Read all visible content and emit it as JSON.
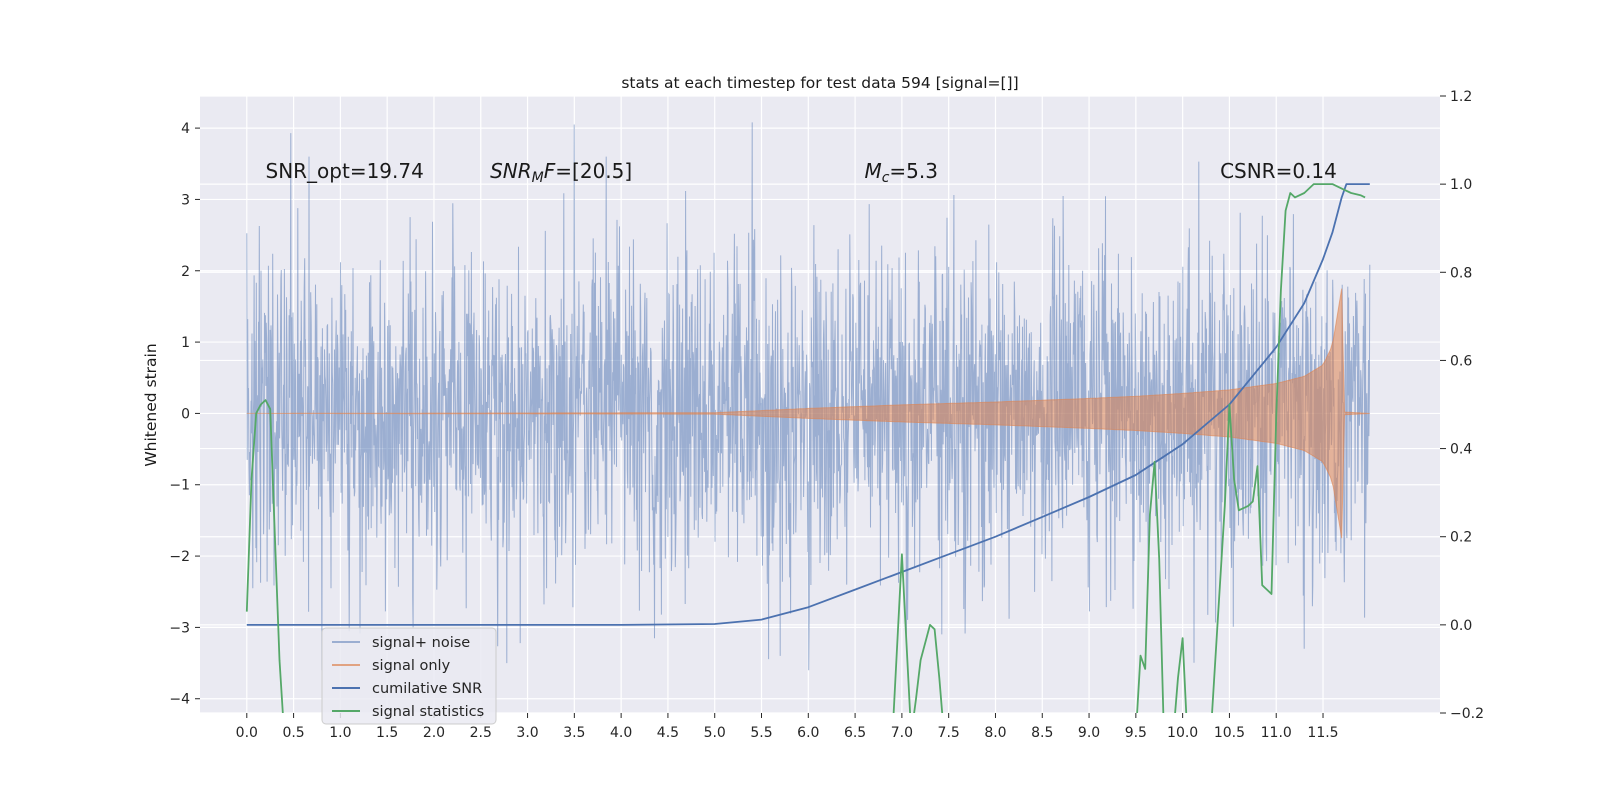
{
  "chart_data": {
    "type": "line",
    "title": "stats at each timestep for test data 594 [signal=[]]",
    "ylabel": "Whitened strain",
    "xlabel": "",
    "xlim": [
      -0.5,
      12.75
    ],
    "ylim": [
      -4.2,
      4.45
    ],
    "y2lim": [
      -0.2,
      1.2
    ],
    "grid": true,
    "legend_position": "lower-left",
    "x_ticks": [
      "0.0",
      "0.5",
      "1.0",
      "1.5",
      "2.0",
      "2.5",
      "3.0",
      "3.5",
      "4.0",
      "4.5",
      "5.0",
      "5.5",
      "6.0",
      "6.5",
      "7.0",
      "7.5",
      "8.0",
      "8.5",
      "9.0",
      "9.5",
      "10.0",
      "10.5",
      "11.0",
      "11.5"
    ],
    "x_tick_values": [
      0,
      0.5,
      1,
      1.5,
      2,
      2.5,
      3,
      3.5,
      4,
      4.5,
      5,
      5.5,
      6,
      6.5,
      7,
      7.5,
      8,
      8.5,
      9,
      9.5,
      10,
      10.5,
      11,
      11.5
    ],
    "y_ticks": [
      "4",
      "3",
      "2",
      "1",
      "0",
      "−1",
      "−2",
      "−3",
      "−4"
    ],
    "y_tick_values": [
      4,
      3,
      2,
      1,
      0,
      -1,
      -2,
      -3,
      -4
    ],
    "y2_ticks": [
      "1.2",
      "1.0",
      "0.8",
      "0.6",
      "0.4",
      "0.2",
      "0.0",
      "−0.2"
    ],
    "y2_tick_values": [
      1.2,
      1.0,
      0.8,
      0.6,
      0.4,
      0.2,
      0.0,
      -0.2
    ],
    "annotations": [
      {
        "plain": "SNR_opt=19.74",
        "x": 0.2,
        "y": 3.3
      },
      {
        "italic": "SNR",
        "sub": "M",
        "italic2": "F",
        "plain": "=[20.5]",
        "x": 2.6,
        "y": 3.3
      },
      {
        "italic": "M",
        "sub": "c",
        "plain": "=5.3",
        "x": 6.6,
        "y": 3.3
      },
      {
        "plain": "CSNR=0.14",
        "x": 10.4,
        "y": 3.3
      }
    ],
    "series": [
      {
        "name": "signal+ noise",
        "color": "#4c72b0",
        "opacity": 0.5,
        "kind": "noise",
        "t_range": [
          0,
          12.0
        ],
        "typical_range": [
          -1.6,
          1.6
        ],
        "peaks": [
          [
            0.47,
            3.93
          ],
          [
            3.5,
            4.05
          ],
          [
            5.4,
            4.08
          ],
          [
            2.78,
            -3.5
          ],
          [
            5.7,
            -3.4
          ],
          [
            11.3,
            -3.3
          ]
        ]
      },
      {
        "name": "signal only",
        "color": "#dd8452",
        "opacity": 0.55,
        "kind": "chirp_envelope",
        "t": [
          0,
          5.0,
          6.0,
          7.0,
          8.0,
          9.0,
          9.5,
          10.0,
          10.5,
          11.0,
          11.3,
          11.5,
          11.6,
          11.65,
          11.7,
          11.72,
          12.0
        ],
        "envelope": [
          0,
          0.01,
          0.07,
          0.12,
          0.16,
          0.21,
          0.24,
          0.28,
          0.33,
          0.42,
          0.52,
          0.68,
          0.95,
          1.35,
          1.75,
          0.02,
          0.0
        ]
      },
      {
        "name": "cumilative SNR",
        "color": "#4c72b0",
        "axis": "right",
        "t": [
          0,
          1,
          2,
          3,
          4,
          5.0,
          5.5,
          6.0,
          6.5,
          7.0,
          7.5,
          8.0,
          8.5,
          9.0,
          9.5,
          10.0,
          10.5,
          11.0,
          11.3,
          11.5,
          11.6,
          11.7,
          11.75,
          12.0
        ],
        "values": [
          0,
          0,
          0,
          0,
          0,
          0.002,
          0.012,
          0.04,
          0.08,
          0.12,
          0.16,
          0.2,
          0.245,
          0.29,
          0.34,
          0.41,
          0.5,
          0.63,
          0.73,
          0.83,
          0.89,
          0.97,
          1.0,
          1.0
        ]
      },
      {
        "name": "signal statistics",
        "color": "#55a868",
        "axis": "right",
        "t": [
          0,
          0.05,
          0.1,
          0.15,
          0.2,
          0.25,
          0.3,
          0.35,
          0.4,
          6.9,
          7.0,
          7.1,
          7.15,
          7.2,
          7.3,
          7.35,
          7.4,
          7.45,
          9.5,
          9.55,
          9.6,
          9.65,
          9.7,
          9.75,
          9.8,
          9.9,
          9.95,
          10.0,
          10.05,
          10.1,
          10.3,
          10.45,
          10.5,
          10.55,
          10.6,
          10.7,
          10.75,
          10.8,
          10.85,
          10.9,
          10.95,
          11.0,
          11.05,
          11.1,
          11.15,
          11.2,
          11.3,
          11.4,
          11.5,
          11.6,
          11.7,
          11.8,
          11.9,
          11.95
        ],
        "values": [
          0.03,
          0.33,
          0.48,
          0.5,
          0.51,
          0.49,
          0.2,
          -0.08,
          -0.25,
          -0.25,
          0.16,
          -0.25,
          -0.17,
          -0.08,
          0.0,
          -0.01,
          -0.12,
          -0.25,
          -0.25,
          -0.07,
          -0.1,
          0.25,
          0.37,
          0.15,
          -0.25,
          -0.25,
          -0.12,
          -0.03,
          -0.25,
          -0.25,
          -0.25,
          0.27,
          0.5,
          0.33,
          0.26,
          0.27,
          0.28,
          0.36,
          0.09,
          0.08,
          0.07,
          0.47,
          0.76,
          0.94,
          0.98,
          0.97,
          0.98,
          1.0,
          1.0,
          1.0,
          0.99,
          0.98,
          0.975,
          0.97
        ]
      }
    ]
  }
}
